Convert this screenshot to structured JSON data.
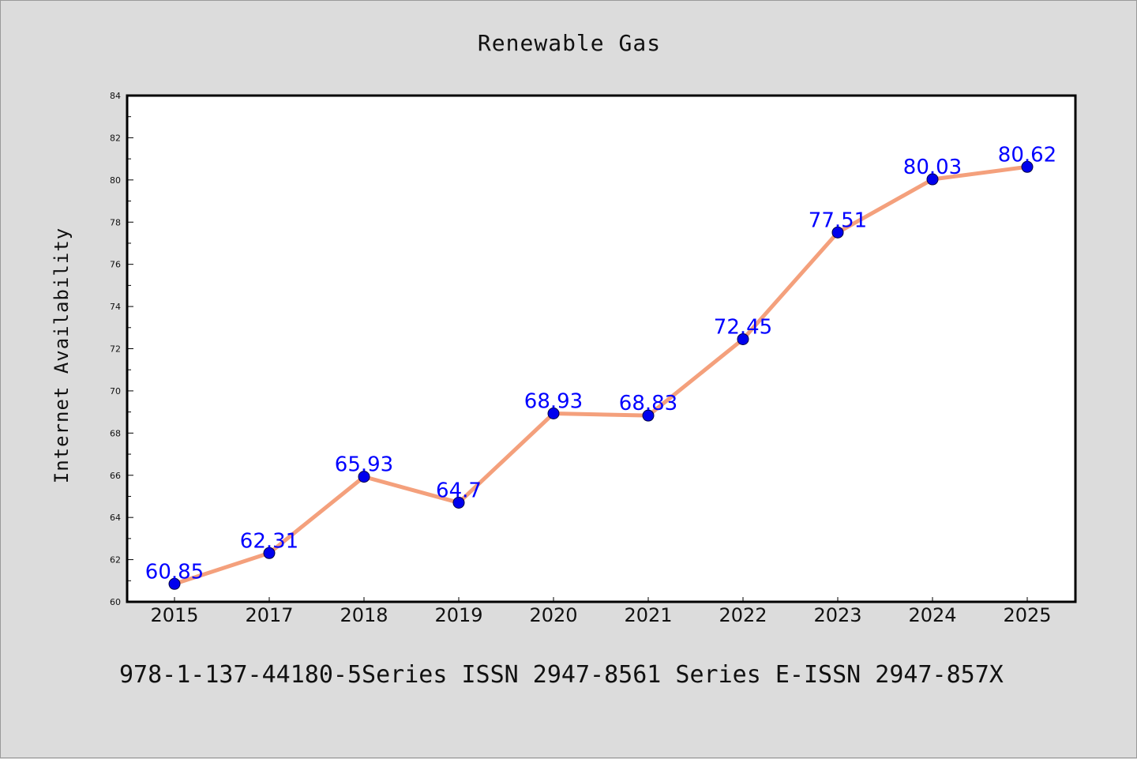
{
  "chart_data": {
    "type": "line",
    "title": "Renewable Gas",
    "xlabel": "",
    "ylabel": "Internet Availability",
    "categories": [
      "2015",
      "2017",
      "2018",
      "2019",
      "2020",
      "2021",
      "2022",
      "2023",
      "2024",
      "2025"
    ],
    "series": [
      {
        "values": [
          60.85,
          62.31,
          65.93,
          64.7,
          68.93,
          68.83,
          72.45,
          77.51,
          80.03,
          80.62
        ],
        "data_labels": [
          "60.85",
          "62.31",
          "65.93",
          "64.7",
          "68.93",
          "68.83",
          "72.45",
          "77.51",
          "80.03",
          "80.62"
        ],
        "line_color": "#f4a07c",
        "marker_color": "#0000ee"
      }
    ],
    "ylim": [
      60,
      84
    ],
    "yticks": [
      "60",
      "62",
      "64",
      "66",
      "68",
      "70",
      "72",
      "74",
      "76",
      "78",
      "80",
      "82",
      "84"
    ],
    "grid": false,
    "label_color": "#0000ff",
    "footer": "978-1-137-44180-5Series ISSN 2947-8561 Series E-ISSN 2947-857X"
  }
}
